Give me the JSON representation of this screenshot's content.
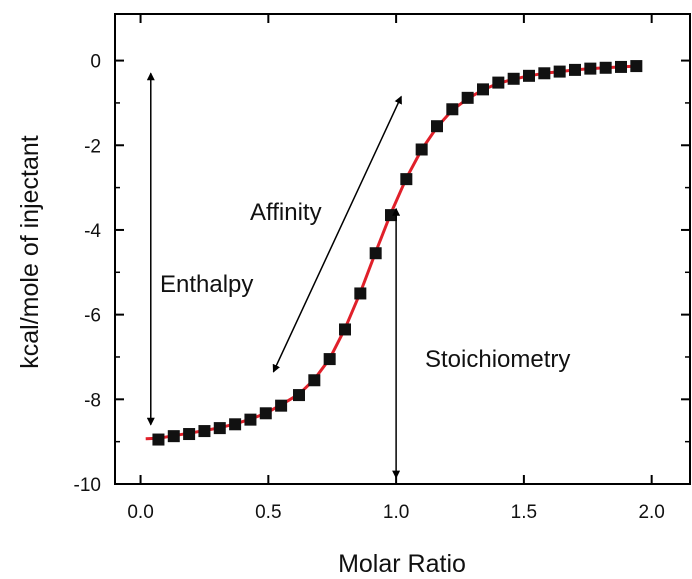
{
  "chart_data": {
    "type": "scatter",
    "title": "",
    "xlabel": "Molar Ratio",
    "ylabel": "kcal/mole of injectant",
    "xlim": [
      -0.1,
      2.15
    ],
    "ylim": [
      -10,
      1.1
    ],
    "xticks": [
      0.0,
      0.5,
      1.0,
      1.5,
      2.0
    ],
    "xtick_labels": [
      "0.0",
      "0.5",
      "1.0",
      "1.5",
      "2.0"
    ],
    "yticks": [
      0,
      -2,
      -4,
      -6,
      -8,
      -10
    ],
    "ytick_labels": [
      "0",
      "-2",
      "-4",
      "-6",
      "-8",
      "-10"
    ],
    "grid": false,
    "series": [
      {
        "kind": "points",
        "marker": "square",
        "color": "#111111",
        "x": [
          0.07,
          0.13,
          0.19,
          0.25,
          0.31,
          0.37,
          0.43,
          0.49,
          0.55,
          0.62,
          0.68,
          0.74,
          0.8,
          0.86,
          0.92,
          0.98,
          1.04,
          1.1,
          1.16,
          1.22,
          1.28,
          1.34,
          1.4,
          1.46,
          1.52,
          1.58,
          1.64,
          1.7,
          1.76,
          1.82,
          1.88,
          1.94
        ],
        "y": [
          -8.95,
          -8.87,
          -8.82,
          -8.75,
          -8.68,
          -8.59,
          -8.48,
          -8.33,
          -8.15,
          -7.9,
          -7.55,
          -7.05,
          -6.35,
          -5.5,
          -4.55,
          -3.65,
          -2.8,
          -2.1,
          -1.55,
          -1.15,
          -0.88,
          -0.68,
          -0.52,
          -0.43,
          -0.36,
          -0.3,
          -0.26,
          -0.22,
          -0.19,
          -0.17,
          -0.15,
          -0.13
        ]
      },
      {
        "kind": "fit",
        "color": "#e0202a",
        "x": [
          0.02,
          0.07,
          0.13,
          0.19,
          0.25,
          0.31,
          0.37,
          0.43,
          0.49,
          0.55,
          0.62,
          0.68,
          0.74,
          0.8,
          0.86,
          0.92,
          0.98,
          1.04,
          1.1,
          1.16,
          1.22,
          1.28,
          1.34,
          1.4,
          1.46,
          1.52,
          1.58,
          1.64,
          1.7,
          1.76,
          1.82,
          1.88,
          1.94
        ],
        "y": [
          -8.93,
          -8.92,
          -8.86,
          -8.8,
          -8.74,
          -8.67,
          -8.58,
          -8.47,
          -8.33,
          -8.13,
          -7.88,
          -7.53,
          -7.04,
          -6.33,
          -5.48,
          -4.52,
          -3.6,
          -2.78,
          -2.1,
          -1.57,
          -1.17,
          -0.9,
          -0.69,
          -0.54,
          -0.44,
          -0.36,
          -0.3,
          -0.26,
          -0.22,
          -0.19,
          -0.17,
          -0.15,
          -0.13
        ]
      }
    ],
    "annotations": [
      {
        "text": "Enthalpy",
        "arrow": "double",
        "from": [
          0.04,
          -0.3
        ],
        "to": [
          0.04,
          -8.6
        ]
      },
      {
        "text": "Affinity",
        "arrow": "double",
        "from": [
          0.52,
          -7.35
        ],
        "to": [
          1.02,
          -0.85
        ]
      },
      {
        "text": "Stoichiometry",
        "arrow": "double",
        "from": [
          1.0,
          -3.5
        ],
        "to": [
          1.0,
          -9.85
        ]
      }
    ]
  }
}
